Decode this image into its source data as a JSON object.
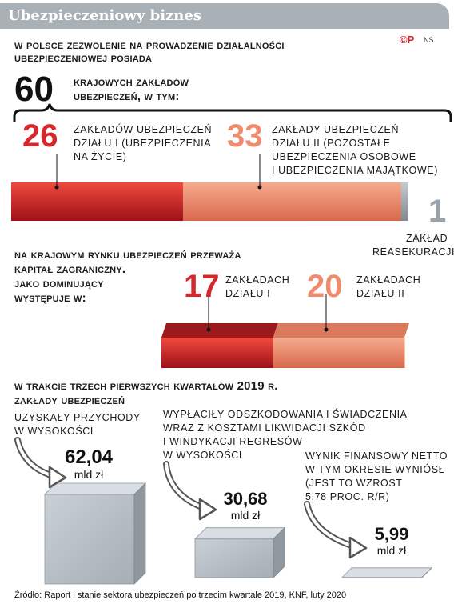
{
  "header": {
    "title": "Ubezpieczeniowy biznes",
    "logo": "©P",
    "author": "NS"
  },
  "section1": {
    "heading_line1": "W Polsce zezwolenie na prowadzenie działalności",
    "heading_line2": "ubezpieczeniowej posiada",
    "total": {
      "value": "60",
      "label_line1": "krajowych zakładów",
      "label_line2": "ubezpieczeń, w tym:"
    },
    "items": [
      {
        "value": "26",
        "line1": "zakładów ubezpieczeń",
        "line2": "działu I (ubezpieczenia",
        "line3": "na życie)",
        "line4": ""
      },
      {
        "value": "33",
        "line1": "zakłady ubezpieczeń",
        "line2": "działu II (pozostałe",
        "line3": "ubezpieczenia osobowe",
        "line4": "i ubezpieczenia majątkowe)"
      },
      {
        "value": "1",
        "line1": "zakład",
        "line2": "reasekuracji",
        "line3": "",
        "line4": ""
      }
    ]
  },
  "section2": {
    "heading_line1": "Na krajowym rynku ubezpieczeń przeważa",
    "heading_line2": "kapitał zagraniczny.",
    "heading_line3": "Jako dominujący",
    "heading_line4": "występuje w:",
    "items": [
      {
        "value": "17",
        "line1": "zakładach",
        "line2": "działu I"
      },
      {
        "value": "20",
        "line1": "zakładach",
        "line2": "działu II"
      }
    ]
  },
  "section3": {
    "heading_line1": "W trakcie trzech pierwszych kwartałów 2019 r.",
    "heading_line2": "zakłady ubezpieczeń",
    "items": [
      {
        "desc": [
          "uzyskały przychody",
          "w wysokości"
        ],
        "value": "62,04",
        "unit": "mld zł"
      },
      {
        "desc": [
          "wypłaciły odszkodowania i świadczenia",
          "wraz z kosztami likwidacji szkód",
          "i windykacji regresów",
          "w wysokości"
        ],
        "value": "30,68",
        "unit": "mld zł"
      },
      {
        "desc": [
          "wynik finansowy netto",
          "w tym okresie wyniósł",
          "(jest to wzrost",
          "5,78 proc. r/r)"
        ],
        "value": "5,99",
        "unit": "mld zł"
      }
    ]
  },
  "chart_data": [
    {
      "type": "bar",
      "orientation": "horizontal-stacked",
      "categories": [
        "zakładów ubezpieczeń działu I (ubezpieczenia na życie)",
        "zakłady ubezpieczeń działu II (pozostałe ubezpieczenia osobowe i ubezpieczenia majątkowe)",
        "zakład reasekuracji"
      ],
      "values": [
        26,
        33,
        1
      ],
      "total": 60,
      "colors": [
        "#d6272b",
        "#ef8c6e",
        "#9aa3ab"
      ]
    },
    {
      "type": "bar",
      "orientation": "horizontal-stacked",
      "categories": [
        "zakładach działu I",
        "zakładach działu II"
      ],
      "values": [
        17,
        20
      ],
      "colors": [
        "#d6272b",
        "#ef8c6e"
      ]
    },
    {
      "type": "bar",
      "orientation": "3d-blocks",
      "categories": [
        "uzyskały przychody",
        "wypłaciły odszkodowania i świadczenia",
        "wynik finansowy netto"
      ],
      "values": [
        62.04,
        30.68,
        5.99
      ],
      "unit": "mld zł",
      "colors": [
        "#b9c1c8"
      ]
    }
  ],
  "colors": {
    "red": "#d6272b",
    "salmon": "#ef8c6e",
    "grey": "#9aa3ab",
    "header": "#a9b0b6"
  },
  "source": "Źródło: Raport i stanie sektora ubezpieczeń po trzecim kwartale 2019, KNF, luty 2020"
}
